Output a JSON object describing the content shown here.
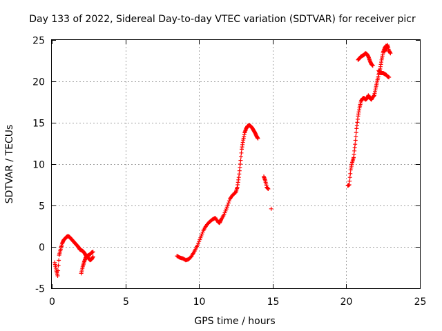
{
  "chart_data": {
    "type": "scatter",
    "title": "Day 133 of 2022, Sidereal Day-to-day VTEC variation (SDTVAR) for receiver picr",
    "xlabel": "GPS time / hours",
    "ylabel": "SDTVAR / TECUs",
    "xlim": [
      0,
      25
    ],
    "ylim": [
      -5,
      25
    ],
    "xticks": [
      "0",
      "5",
      "10",
      "15",
      "20",
      "25"
    ],
    "yticks": [
      "-5",
      "0",
      "5",
      "10",
      "15",
      "20",
      "25"
    ],
    "grid": true,
    "marker": "+",
    "color": "#ff0000",
    "series": [
      {
        "name": "SDTVAR",
        "segments": [
          [
            [
              0.2,
              -1.9
            ],
            [
              0.3,
              -2.8
            ],
            [
              0.4,
              -3.5
            ],
            [
              0.5,
              -1.0
            ],
            [
              0.6,
              -0.3
            ],
            [
              0.7,
              0.4
            ],
            [
              0.8,
              0.8
            ],
            [
              0.9,
              1.0
            ],
            [
              1.0,
              1.2
            ],
            [
              1.1,
              1.3
            ],
            [
              1.2,
              1.2
            ],
            [
              1.3,
              1.0
            ],
            [
              1.4,
              0.8
            ],
            [
              1.5,
              0.6
            ],
            [
              1.6,
              0.4
            ],
            [
              1.7,
              0.2
            ],
            [
              1.8,
              0.0
            ],
            [
              1.9,
              -0.3
            ],
            [
              2.0,
              -0.4
            ],
            [
              2.1,
              -0.5
            ],
            [
              2.2,
              -0.7
            ],
            [
              2.3,
              -1.0
            ],
            [
              2.4,
              -1.2
            ],
            [
              2.5,
              -1.4
            ],
            [
              2.6,
              -1.6
            ],
            [
              2.7,
              -1.5
            ],
            [
              2.8,
              -1.2
            ]
          ],
          [
            [
              2.0,
              -3.2
            ],
            [
              2.1,
              -2.4
            ],
            [
              2.2,
              -1.8
            ],
            [
              2.3,
              -1.3
            ],
            [
              2.4,
              -1.1
            ],
            [
              2.5,
              -1.0
            ],
            [
              2.6,
              -0.9
            ],
            [
              2.7,
              -0.7
            ],
            [
              2.8,
              -0.6
            ]
          ],
          [
            [
              8.5,
              -1.1
            ],
            [
              8.7,
              -1.3
            ],
            [
              8.9,
              -1.4
            ],
            [
              9.1,
              -1.6
            ],
            [
              9.3,
              -1.5
            ],
            [
              9.5,
              -1.1
            ],
            [
              9.7,
              -0.5
            ],
            [
              9.9,
              0.2
            ],
            [
              10.1,
              1.1
            ],
            [
              10.3,
              2.0
            ],
            [
              10.5,
              2.6
            ],
            [
              10.7,
              3.0
            ],
            [
              10.9,
              3.3
            ],
            [
              11.1,
              3.5
            ],
            [
              11.3,
              3.0
            ],
            [
              11.4,
              2.9
            ],
            [
              11.5,
              3.3
            ],
            [
              11.7,
              3.9
            ],
            [
              11.9,
              4.8
            ],
            [
              12.1,
              5.8
            ],
            [
              12.3,
              6.3
            ],
            [
              12.5,
              6.6
            ],
            [
              12.6,
              7.2
            ],
            [
              12.7,
              8.4
            ],
            [
              12.8,
              10.0
            ],
            [
              12.9,
              11.8
            ],
            [
              13.0,
              12.9
            ],
            [
              13.1,
              13.8
            ],
            [
              13.2,
              14.3
            ],
            [
              13.3,
              14.6
            ],
            [
              13.4,
              14.7
            ],
            [
              13.5,
              14.6
            ],
            [
              13.6,
              14.4
            ],
            [
              13.7,
              14.1
            ],
            [
              13.8,
              13.8
            ],
            [
              13.9,
              13.4
            ],
            [
              14.0,
              13.1
            ]
          ],
          [
            [
              14.4,
              8.5
            ],
            [
              14.5,
              8.0
            ],
            [
              14.6,
              7.2
            ],
            [
              14.7,
              7.0
            ]
          ],
          [
            [
              14.9,
              4.6
            ]
          ],
          [
            [
              20.1,
              7.4
            ],
            [
              20.2,
              7.5
            ],
            [
              20.3,
              9.3
            ],
            [
              20.4,
              10.2
            ],
            [
              20.5,
              10.8
            ],
            [
              20.6,
              12.4
            ],
            [
              20.7,
              14.3
            ],
            [
              20.8,
              15.8
            ],
            [
              20.9,
              16.8
            ],
            [
              21.0,
              17.6
            ],
            [
              21.1,
              17.9
            ],
            [
              21.2,
              18.0
            ],
            [
              21.3,
              17.8
            ],
            [
              21.4,
              17.9
            ],
            [
              21.5,
              18.3
            ],
            [
              21.6,
              18.0
            ],
            [
              21.7,
              17.8
            ],
            [
              21.8,
              18.1
            ],
            [
              21.9,
              18.3
            ],
            [
              22.0,
              19.2
            ],
            [
              22.1,
              20.0
            ],
            [
              22.2,
              20.8
            ],
            [
              22.3,
              21.5
            ],
            [
              22.4,
              22.6
            ],
            [
              22.5,
              23.5
            ],
            [
              22.6,
              24.0
            ],
            [
              22.7,
              24.3
            ],
            [
              22.8,
              24.1
            ]
          ],
          [
            [
              20.8,
              22.6
            ],
            [
              20.9,
              22.8
            ],
            [
              21.0,
              23.0
            ],
            [
              21.1,
              23.1
            ],
            [
              21.2,
              23.2
            ],
            [
              21.3,
              23.4
            ],
            [
              21.4,
              23.3
            ],
            [
              21.5,
              23.0
            ],
            [
              21.6,
              22.5
            ],
            [
              21.7,
              22.1
            ],
            [
              21.8,
              21.9
            ]
          ],
          [
            [
              22.2,
              21.3
            ],
            [
              22.3,
              21.1
            ],
            [
              22.4,
              21.0
            ],
            [
              22.5,
              21.0
            ],
            [
              22.6,
              20.9
            ],
            [
              22.7,
              20.8
            ],
            [
              22.8,
              20.6
            ],
            [
              22.9,
              20.5
            ]
          ],
          [
            [
              22.6,
              23.6
            ],
            [
              22.7,
              24.0
            ],
            [
              22.8,
              24.4
            ],
            [
              22.9,
              23.7
            ],
            [
              23.0,
              23.4
            ]
          ]
        ]
      }
    ]
  }
}
